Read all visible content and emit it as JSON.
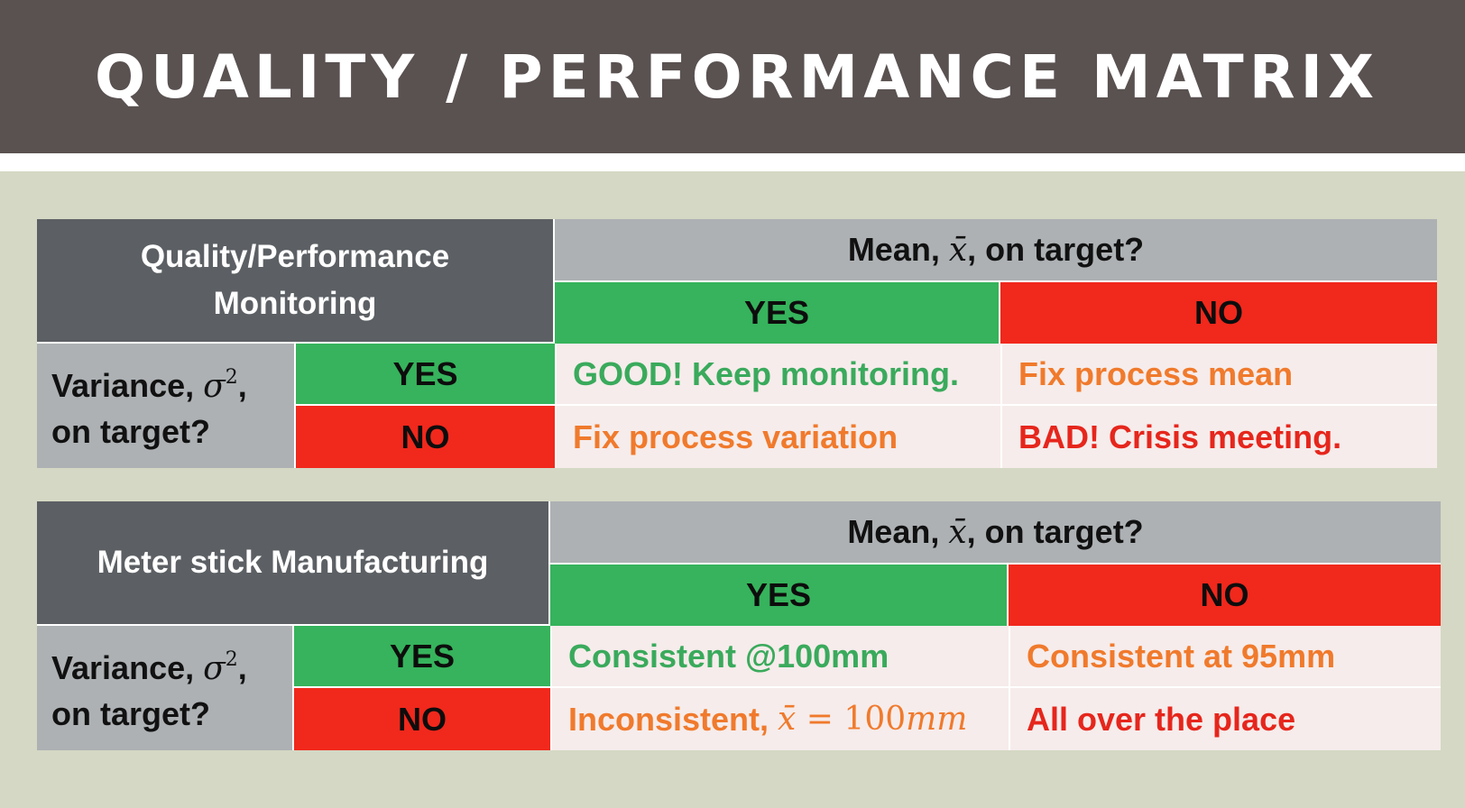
{
  "slide": {
    "title": "QUALITY / PERFORMANCE MATRIX"
  },
  "matrix1": {
    "corner_line1": "Quality/Performance",
    "corner_line2": "Monitoring",
    "mean_prefix": "Mean,",
    "mean_symbol": "x̄",
    "mean_suffix": ", on target?",
    "col_yes": "YES",
    "col_no": "NO",
    "var_prefix": "Variance,",
    "var_symbol": "σ",
    "var_exp": "2",
    "var_suffix": ",",
    "var_line2": "on target?",
    "row_yes": "YES",
    "row_no": "NO",
    "cells": {
      "yes_yes": "GOOD! Keep monitoring.",
      "yes_no": "Fix process mean",
      "no_yes": "Fix process variation",
      "no_no": "BAD! Crisis meeting."
    }
  },
  "matrix2": {
    "corner": "Meter stick Manufacturing",
    "mean_prefix": "Mean,",
    "mean_symbol": "x̄",
    "mean_suffix": ", on target?",
    "col_yes": "YES",
    "col_no": "NO",
    "var_prefix": "Variance,",
    "var_symbol": "σ",
    "var_exp": "2",
    "var_suffix": ",",
    "var_line2": "on target?",
    "row_yes": "YES",
    "row_no": "NO",
    "cells": {
      "yes_yes": "Consistent @100mm",
      "yes_no": "Consistent at 95mm",
      "no_yes_text": "Inconsistent,",
      "no_yes_math_symbol": "x̄",
      "no_yes_math_eq": " = 100",
      "no_yes_math_unit": "mm",
      "no_no": "All over the place"
    }
  },
  "colors": {
    "title_bar": "#5a5151",
    "background": "#d4d8c4",
    "header_dark": "#5c6064",
    "header_light": "#adb1b4",
    "yes_green": "#36b35c",
    "no_red": "#f1281c",
    "cell_bg": "#f6eceb",
    "text_green": "#3aaa5c",
    "text_orange": "#f07a2c",
    "text_red": "#e6261c"
  }
}
